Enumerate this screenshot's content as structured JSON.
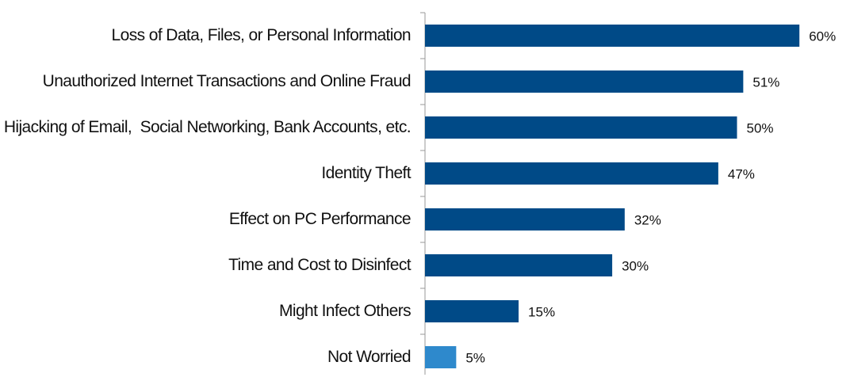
{
  "chart_data": {
    "type": "bar",
    "orientation": "horizontal",
    "categories": [
      "Loss of Data, Files, or Personal Information",
      "Unauthorized Internet Transactions and Online Fraud",
      "Hijacking of Email,  Social Networking, Bank Accounts, etc.",
      "Identity Theft",
      "Effect on PC Performance",
      "Time and Cost to Disinfect",
      "Might Infect Others",
      "Not Worried"
    ],
    "values": [
      60,
      51,
      50,
      47,
      32,
      30,
      15,
      5
    ],
    "value_labels": [
      "60%",
      "51%",
      "50%",
      "47%",
      "32%",
      "30%",
      "15%",
      "5%"
    ],
    "colors": [
      "#004a87",
      "#004a87",
      "#004a87",
      "#004a87",
      "#004a87",
      "#004a87",
      "#004a87",
      "#2e89cc"
    ]
  }
}
